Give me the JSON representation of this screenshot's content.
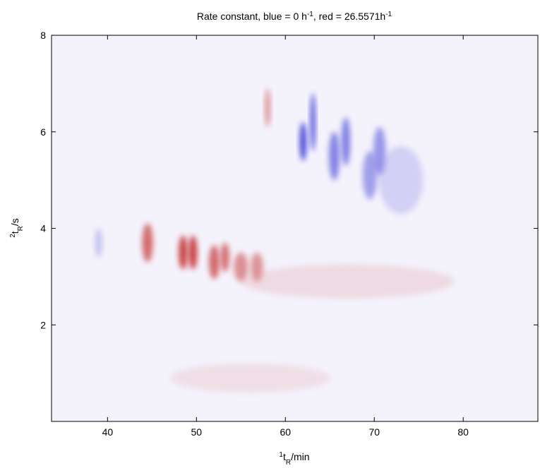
{
  "chart_data": {
    "type": "heatmap",
    "title": [
      "Rate constant, blue = 0 h",
      "-1",
      ", red = 26.5571h",
      "-1"
    ],
    "xlabel": [
      "1",
      "t",
      "R",
      "/min"
    ],
    "ylabel": [
      "2",
      "t",
      "R",
      "/s"
    ],
    "clim": [
      0,
      26.5571
    ],
    "colors": [
      "#1a1ad0",
      "#f4f2fb",
      "#c01a1a"
    ],
    "xlim": [
      33.7,
      88.4
    ],
    "ylim": [
      0,
      8
    ],
    "xticks": [
      40,
      50,
      60,
      70,
      80
    ],
    "yticks": [
      2,
      4,
      6,
      8
    ],
    "spots": [
      {
        "x": 39,
        "y": 3.7,
        "value": 10,
        "sx": 0.4,
        "sy": 0.3
      },
      {
        "x": 44.5,
        "y": 3.7,
        "value": 24,
        "sx": 0.6,
        "sy": 0.4
      },
      {
        "x": 48.5,
        "y": 3.5,
        "value": 25,
        "sx": 0.5,
        "sy": 0.35
      },
      {
        "x": 49.6,
        "y": 3.5,
        "value": 25,
        "sx": 0.5,
        "sy": 0.35
      },
      {
        "x": 52,
        "y": 3.3,
        "value": 23,
        "sx": 0.6,
        "sy": 0.35
      },
      {
        "x": 53.2,
        "y": 3.4,
        "value": 22,
        "sx": 0.5,
        "sy": 0.3
      },
      {
        "x": 55,
        "y": 3.2,
        "value": 21,
        "sx": 0.8,
        "sy": 0.3
      },
      {
        "x": 56.8,
        "y": 3.2,
        "value": 20,
        "sx": 0.7,
        "sy": 0.3
      },
      {
        "x": 58,
        "y": 6.5,
        "value": 20,
        "sx": 0.3,
        "sy": 0.4
      },
      {
        "x": 62,
        "y": 5.8,
        "value": 2,
        "sx": 0.4,
        "sy": 0.4
      },
      {
        "x": 63.1,
        "y": 6.2,
        "value": 3,
        "sx": 0.3,
        "sy": 0.6
      },
      {
        "x": 65.5,
        "y": 5.5,
        "value": 3,
        "sx": 0.6,
        "sy": 0.5
      },
      {
        "x": 66.8,
        "y": 5.8,
        "value": 4,
        "sx": 0.5,
        "sy": 0.5
      },
      {
        "x": 69.5,
        "y": 5.1,
        "value": 4,
        "sx": 0.8,
        "sy": 0.5
      },
      {
        "x": 70.6,
        "y": 5.6,
        "value": 4,
        "sx": 0.7,
        "sy": 0.5
      },
      {
        "x": 73,
        "y": 5.0,
        "value": 6,
        "sx": 2.5,
        "sy": 0.7
      },
      {
        "x": 67,
        "y": 2.9,
        "value": 19,
        "sx": 12,
        "sy": 0.35
      },
      {
        "x": 56,
        "y": 0.9,
        "value": 18,
        "sx": 9,
        "sy": 0.3
      }
    ]
  }
}
